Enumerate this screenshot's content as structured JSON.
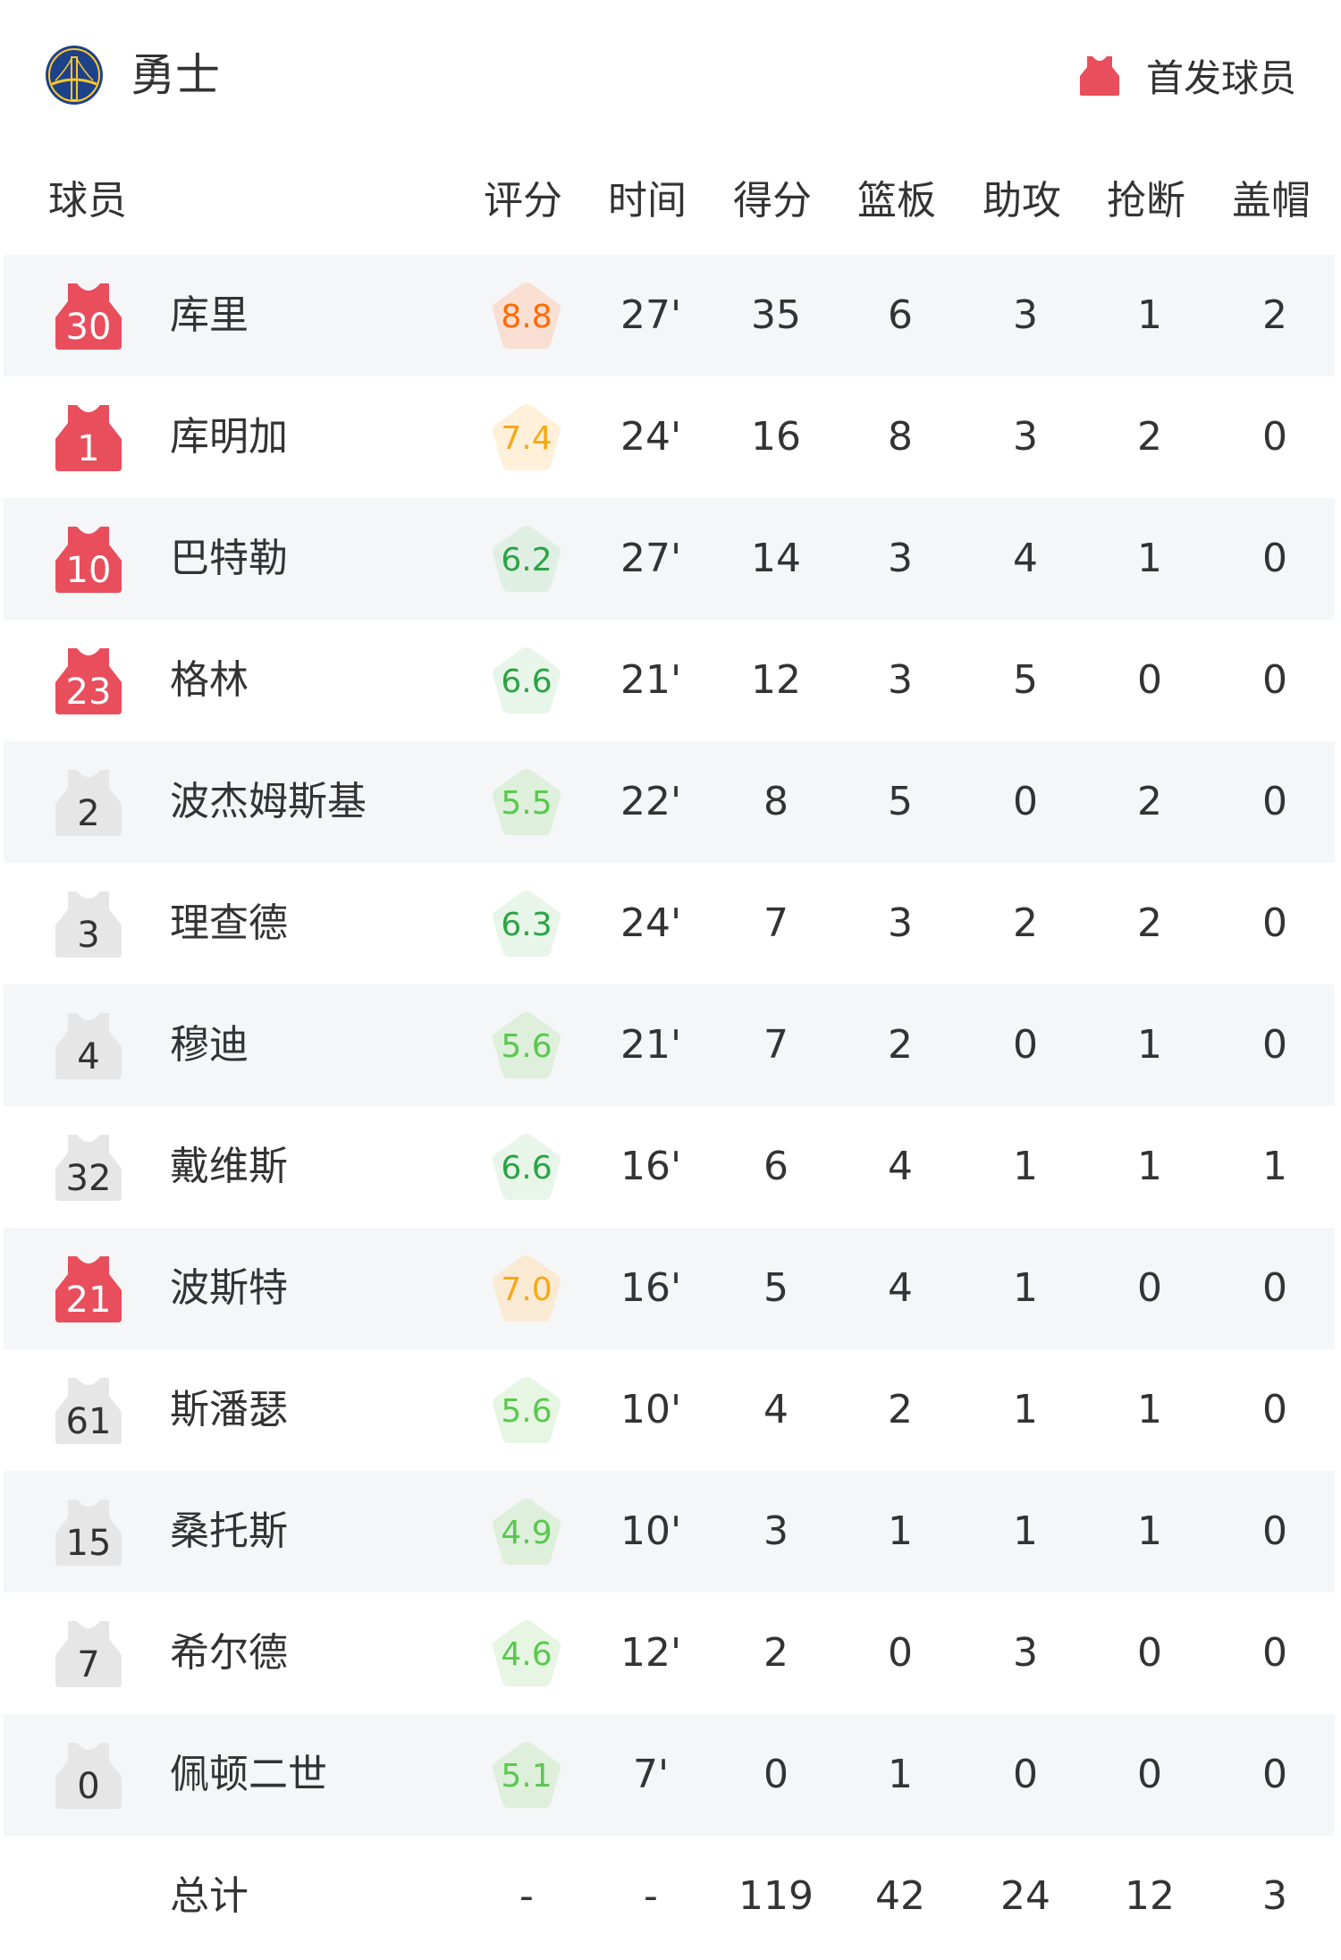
{
  "team": {
    "name": "勇士",
    "logo_icon": "warriors-bridge-logo"
  },
  "legend": {
    "label": "首发球员",
    "icon": "jersey-icon",
    "starter_color": "#e84e5c",
    "bench_color": "#e6e6e6"
  },
  "columns": {
    "player": "球员",
    "rating": "评分",
    "minutes": "时间",
    "points": "得分",
    "rebounds": "篮板",
    "assists": "助攻",
    "steals": "抢断",
    "blocks": "盖帽"
  },
  "players": [
    {
      "number": "30",
      "name": "库里",
      "starter": true,
      "rating": "8.8",
      "rating_color": "#ff6a00",
      "rating_bg": "#f8dfd2",
      "minutes": "27'",
      "points": "35",
      "rebounds": "6",
      "assists": "3",
      "steals": "1",
      "blocks": "2"
    },
    {
      "number": "1",
      "name": "库明加",
      "starter": true,
      "rating": "7.4",
      "rating_color": "#f7a815",
      "rating_bg": "#fef0d9",
      "minutes": "24'",
      "points": "16",
      "rebounds": "8",
      "assists": "3",
      "steals": "2",
      "blocks": "0"
    },
    {
      "number": "10",
      "name": "巴特勒",
      "starter": true,
      "rating": "6.2",
      "rating_color": "#2aa444",
      "rating_bg": "#e0efe4",
      "minutes": "27'",
      "points": "14",
      "rebounds": "3",
      "assists": "4",
      "steals": "1",
      "blocks": "0"
    },
    {
      "number": "23",
      "name": "格林",
      "starter": true,
      "rating": "6.6",
      "rating_color": "#2aa444",
      "rating_bg": "#e8f6ea",
      "minutes": "21'",
      "points": "12",
      "rebounds": "3",
      "assists": "5",
      "steals": "0",
      "blocks": "0"
    },
    {
      "number": "2",
      "name": "波杰姆斯基",
      "starter": false,
      "rating": "5.5",
      "rating_color": "#5ac84e",
      "rating_bg": "#deefdc",
      "minutes": "22'",
      "points": "8",
      "rebounds": "5",
      "assists": "0",
      "steals": "2",
      "blocks": "0"
    },
    {
      "number": "3",
      "name": "理查德",
      "starter": false,
      "rating": "6.3",
      "rating_color": "#2aa444",
      "rating_bg": "#e8f6ea",
      "minutes": "24'",
      "points": "7",
      "rebounds": "3",
      "assists": "2",
      "steals": "2",
      "blocks": "0"
    },
    {
      "number": "4",
      "name": "穆迪",
      "starter": false,
      "rating": "5.6",
      "rating_color": "#5ac84e",
      "rating_bg": "#deefdc",
      "minutes": "21'",
      "points": "7",
      "rebounds": "2",
      "assists": "0",
      "steals": "1",
      "blocks": "0"
    },
    {
      "number": "32",
      "name": "戴维斯",
      "starter": false,
      "rating": "6.6",
      "rating_color": "#2aa444",
      "rating_bg": "#e8f6ea",
      "minutes": "16'",
      "points": "6",
      "rebounds": "4",
      "assists": "1",
      "steals": "1",
      "blocks": "1"
    },
    {
      "number": "21",
      "name": "波斯特",
      "starter": true,
      "rating": "7.0",
      "rating_color": "#f7a815",
      "rating_bg": "#fbead3",
      "minutes": "16'",
      "points": "5",
      "rebounds": "4",
      "assists": "1",
      "steals": "0",
      "blocks": "0"
    },
    {
      "number": "61",
      "name": "斯潘瑟",
      "starter": false,
      "rating": "5.6",
      "rating_color": "#5ac84e",
      "rating_bg": "#e6f6e3",
      "minutes": "10'",
      "points": "4",
      "rebounds": "2",
      "assists": "1",
      "steals": "1",
      "blocks": "0"
    },
    {
      "number": "15",
      "name": "桑托斯",
      "starter": false,
      "rating": "4.9",
      "rating_color": "#5ac84e",
      "rating_bg": "#deefdc",
      "minutes": "10'",
      "points": "3",
      "rebounds": "1",
      "assists": "1",
      "steals": "1",
      "blocks": "0"
    },
    {
      "number": "7",
      "name": "希尔德",
      "starter": false,
      "rating": "4.6",
      "rating_color": "#5ac84e",
      "rating_bg": "#e6f6e3",
      "minutes": "12'",
      "points": "2",
      "rebounds": "0",
      "assists": "3",
      "steals": "0",
      "blocks": "0"
    },
    {
      "number": "0",
      "name": "佩顿二世",
      "starter": false,
      "rating": "5.1",
      "rating_color": "#5ac84e",
      "rating_bg": "#deefdc",
      "minutes": "7'",
      "points": "0",
      "rebounds": "1",
      "assists": "0",
      "steals": "0",
      "blocks": "0"
    }
  ],
  "totals": {
    "label": "总计",
    "rating": "-",
    "minutes": "-",
    "points": "119",
    "rebounds": "42",
    "assists": "24",
    "steals": "12",
    "blocks": "3"
  }
}
